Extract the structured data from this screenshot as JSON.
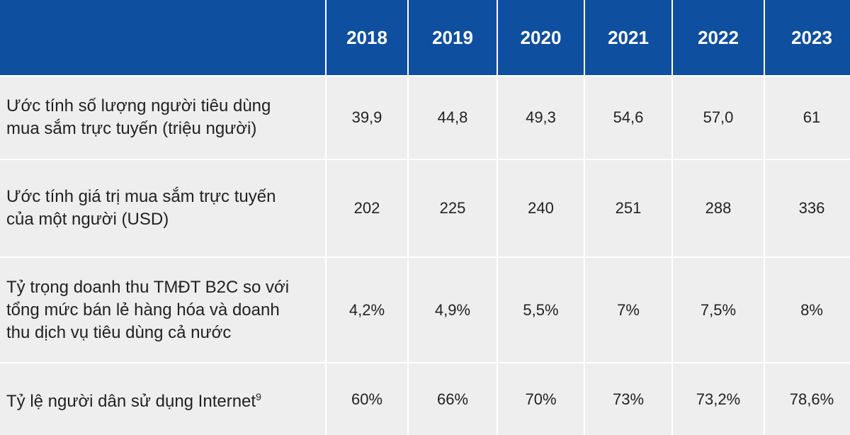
{
  "header": {
    "years": [
      "2018",
      "2019",
      "2020",
      "2021",
      "2022",
      "2023"
    ]
  },
  "rows": [
    {
      "label_lines": [
        "Ước tính số lượng người tiêu dùng",
        "mua sắm trực tuyến (triệu người)"
      ],
      "values": [
        "39,9",
        "44,8",
        "49,3",
        "54,6",
        "57,0",
        "61"
      ]
    },
    {
      "label_lines": [
        "Ước tính giá trị mua sắm trực tuyến",
        "của một người (USD)"
      ],
      "values": [
        "202",
        "225",
        "240",
        "251",
        "288",
        "336"
      ]
    },
    {
      "label_lines": [
        "Tỷ trọng doanh thu TMĐT B2C so với",
        "tổng mức bán lẻ hàng hóa và doanh",
        "thu dịch vụ tiêu dùng cả nước"
      ],
      "values": [
        "4,2%",
        "4,9%",
        "5,5%",
        "7%",
        "7,5%",
        "8%"
      ]
    },
    {
      "label_lines": [
        "Tỷ lệ người dân sử dụng Internet"
      ],
      "footnote": "9",
      "values": [
        "60%",
        "66%",
        "70%",
        "73%",
        "73,2%",
        "78,6%"
      ]
    }
  ]
}
